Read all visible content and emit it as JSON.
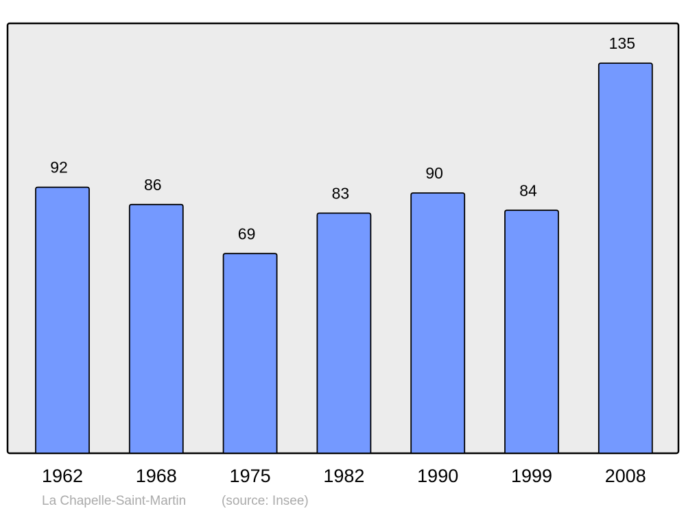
{
  "chart_data": {
    "type": "bar",
    "categories": [
      "1962",
      "1968",
      "1975",
      "1982",
      "1990",
      "1999",
      "2008"
    ],
    "values": [
      92,
      86,
      69,
      83,
      90,
      84,
      135
    ],
    "color": "#7499ff",
    "caption": "La Chapelle-Saint-Martin",
    "source": "(source: Insee)"
  }
}
